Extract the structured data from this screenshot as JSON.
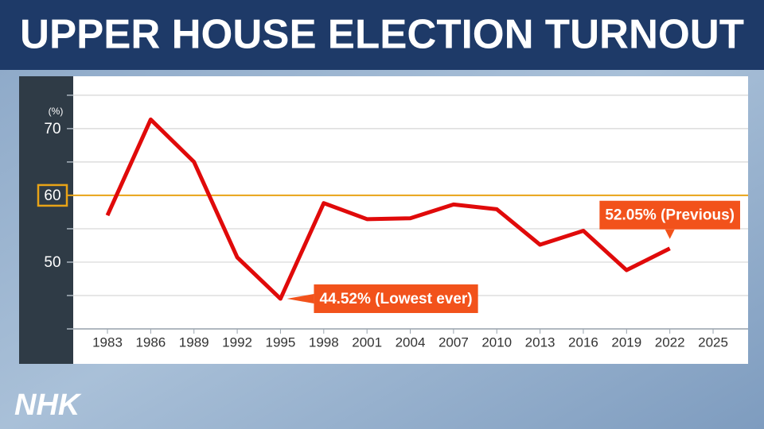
{
  "chart_data": {
    "type": "line",
    "title": "UPPER HOUSE ELECTION TURNOUT",
    "y_unit": "(%)",
    "categories": [
      "1983",
      "1986",
      "1989",
      "1992",
      "1995",
      "1998",
      "2001",
      "2004",
      "2007",
      "2010",
      "2013",
      "2016",
      "2019",
      "2022",
      "2025"
    ],
    "values": [
      57.0,
      71.36,
      65.02,
      50.72,
      44.52,
      58.84,
      56.44,
      56.57,
      58.64,
      57.92,
      52.61,
      54.7,
      48.8,
      52.05,
      null
    ],
    "value_labels": [
      null,
      null,
      null,
      null,
      "44.52% (Lowest ever)",
      null,
      null,
      null,
      null,
      null,
      null,
      null,
      null,
      "52.05% (Previous)",
      null
    ],
    "color": "#e00a0a",
    "label_color": "#f2521b",
    "highlight_y": 60,
    "highlight_color": "#e8a317",
    "ylim": [
      40,
      77.6
    ],
    "yticks": [
      50,
      60,
      70
    ],
    "minor_yticks": [
      40,
      45,
      55,
      65,
      75
    ],
    "grid": true
  },
  "logo": "NHK"
}
